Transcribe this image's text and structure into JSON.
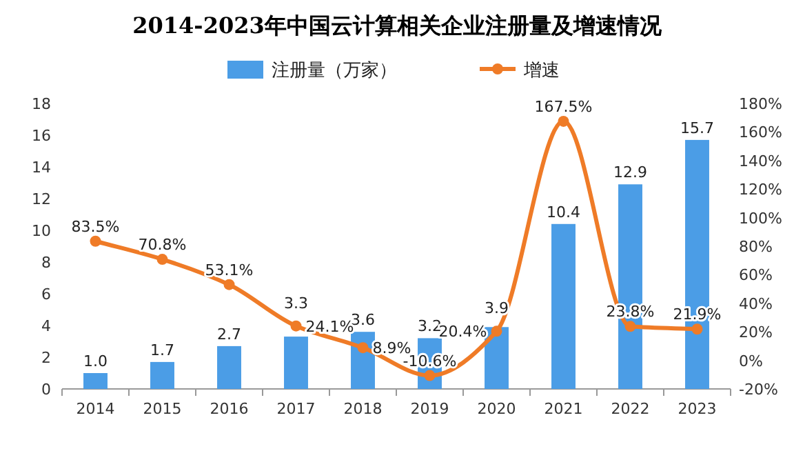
{
  "chart_data": {
    "type": "bar",
    "title": "2014-2023年中国云计算相关企业注册量及增速情况",
    "categories": [
      "2014",
      "2015",
      "2016",
      "2017",
      "2018",
      "2019",
      "2020",
      "2021",
      "2022",
      "2023"
    ],
    "series": [
      {
        "name": "注册量（万家）",
        "type": "bar",
        "color": "#4b9de6",
        "values": [
          1.0,
          1.7,
          2.7,
          3.3,
          3.6,
          3.2,
          3.9,
          10.4,
          12.9,
          15.7
        ],
        "value_labels": [
          "1.0",
          "1.7",
          "2.7",
          "3.3",
          "3.6",
          "3.2",
          "3.9",
          "10.4",
          "12.9",
          "15.7"
        ]
      },
      {
        "name": "增速",
        "type": "line",
        "axis": "y2",
        "color": "#ef7b27",
        "values": [
          83.5,
          70.8,
          53.1,
          24.1,
          8.9,
          -10.6,
          20.4,
          167.5,
          23.8,
          21.9
        ],
        "value_labels": [
          "83.5%",
          "70.8%",
          "53.1%",
          "24.1%",
          "8.9%",
          "-10.6%",
          "20.4%",
          "167.5%",
          "23.8%",
          "21.9%"
        ]
      }
    ],
    "ylim": [
      0,
      18
    ],
    "yticks": [
      0,
      2,
      4,
      6,
      8,
      10,
      12,
      14,
      16,
      18
    ],
    "y2lim": [
      -20,
      180
    ],
    "y2ticks": [
      {
        "value": -20,
        "label": "-20%"
      },
      {
        "value": 0,
        "label": "0%"
      },
      {
        "value": 20,
        "label": "20%"
      },
      {
        "value": 40,
        "label": "40%"
      },
      {
        "value": 60,
        "label": "60%"
      },
      {
        "value": 80,
        "label": "80%"
      },
      {
        "value": 100,
        "label": "100%"
      },
      {
        "value": 120,
        "label": "120%"
      },
      {
        "value": 140,
        "label": "140%"
      },
      {
        "value": 160,
        "label": "160%"
      },
      {
        "value": 180,
        "label": "180%"
      }
    ],
    "marker": "circle",
    "legend": "top"
  }
}
